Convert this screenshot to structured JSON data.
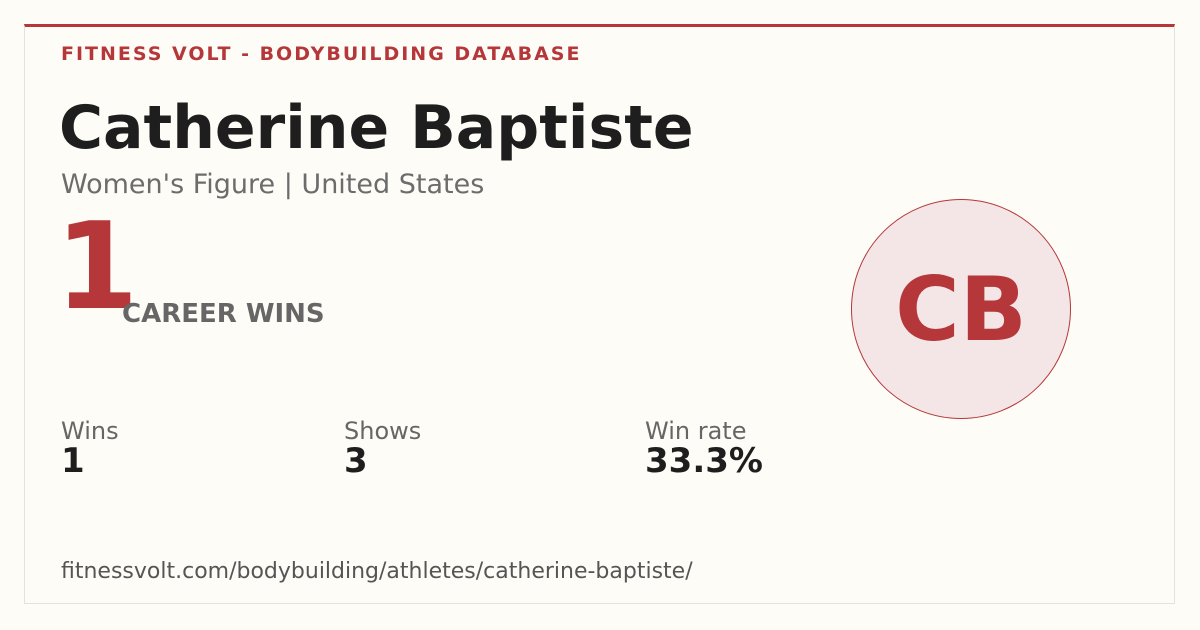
{
  "header": {
    "site": "FITNESS VOLT - BODYBUILDING DATABASE"
  },
  "athlete": {
    "name": "Catherine Baptiste",
    "subtitle": "Women's Figure | United States",
    "initials": "CB"
  },
  "hero": {
    "value": "1",
    "label": "CAREER WINS"
  },
  "stats": [
    {
      "label": "Wins",
      "value": "1"
    },
    {
      "label": "Shows",
      "value": "3"
    },
    {
      "label": "Win rate",
      "value": "33.3%"
    }
  ],
  "footer": {
    "url": "fitnessvolt.com/bodybuilding/athletes/catherine-baptiste/"
  }
}
